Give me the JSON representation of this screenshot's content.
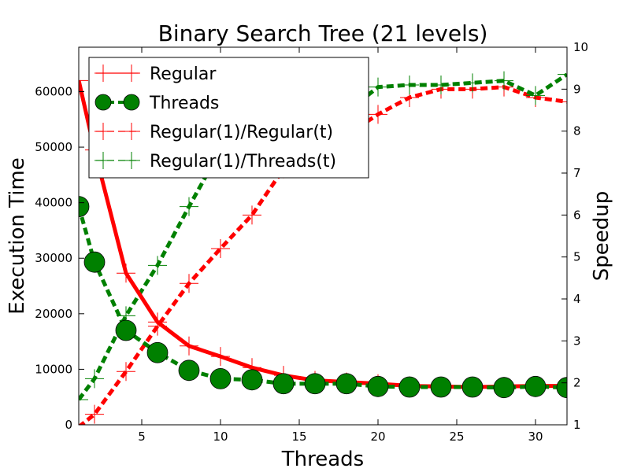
{
  "chart_data": {
    "type": "line",
    "title": "Binary Search Tree (21 levels)",
    "xlabel": "Threads",
    "ylabel": "Execution Time",
    "ylabel_right": "Speedup",
    "xlim": [
      1,
      32
    ],
    "ylim": [
      0,
      68000
    ],
    "ylim_right": [
      1,
      10
    ],
    "x_ticks": [
      5,
      10,
      15,
      20,
      25,
      30
    ],
    "y_ticks": [
      0,
      10000,
      20000,
      30000,
      40000,
      50000,
      60000
    ],
    "y_ticks_right": [
      1,
      2,
      3,
      4,
      5,
      6,
      7,
      8,
      9,
      10
    ],
    "grid": false,
    "legend_position": "top-left",
    "x": [
      1,
      2,
      4,
      6,
      8,
      10,
      12,
      14,
      16,
      18,
      20,
      22,
      24,
      26,
      28,
      30,
      32
    ],
    "series": [
      {
        "name": "Regular",
        "axis": "left",
        "color": "#ff0000",
        "style": "solid",
        "marker": "plus",
        "values": [
          62000,
          49500,
          27300,
          18500,
          14200,
          12300,
          10300,
          8900,
          8000,
          7700,
          7400,
          7000,
          6900,
          6800,
          6900,
          7000,
          7000
        ]
      },
      {
        "name": "Threads",
        "axis": "left",
        "color": "#008000",
        "style": "dashed",
        "marker": "circle",
        "values": [
          39300,
          29300,
          17000,
          13000,
          9800,
          8300,
          8100,
          7400,
          7400,
          7400,
          6900,
          6800,
          6800,
          6800,
          6700,
          6900,
          6700
        ]
      },
      {
        "name": "Regular(1)/Regular(t)",
        "axis": "right",
        "color": "#ff0000",
        "style": "dashed",
        "marker": "plus",
        "values": [
          0.95,
          1.25,
          2.27,
          3.35,
          4.37,
          5.2,
          6.0,
          7.1,
          7.8,
          7.9,
          8.4,
          8.8,
          9.0,
          9.0,
          9.05,
          8.8,
          8.7
        ]
      },
      {
        "name": "Regular(1)/Threads(t)",
        "axis": "right",
        "color": "#008000",
        "style": "dashed",
        "marker": "plus",
        "values": [
          1.6,
          2.1,
          3.6,
          4.8,
          6.2,
          7.55,
          7.7,
          8.35,
          8.5,
          8.45,
          9.05,
          9.1,
          9.1,
          9.15,
          9.2,
          8.85,
          9.35
        ]
      }
    ]
  }
}
